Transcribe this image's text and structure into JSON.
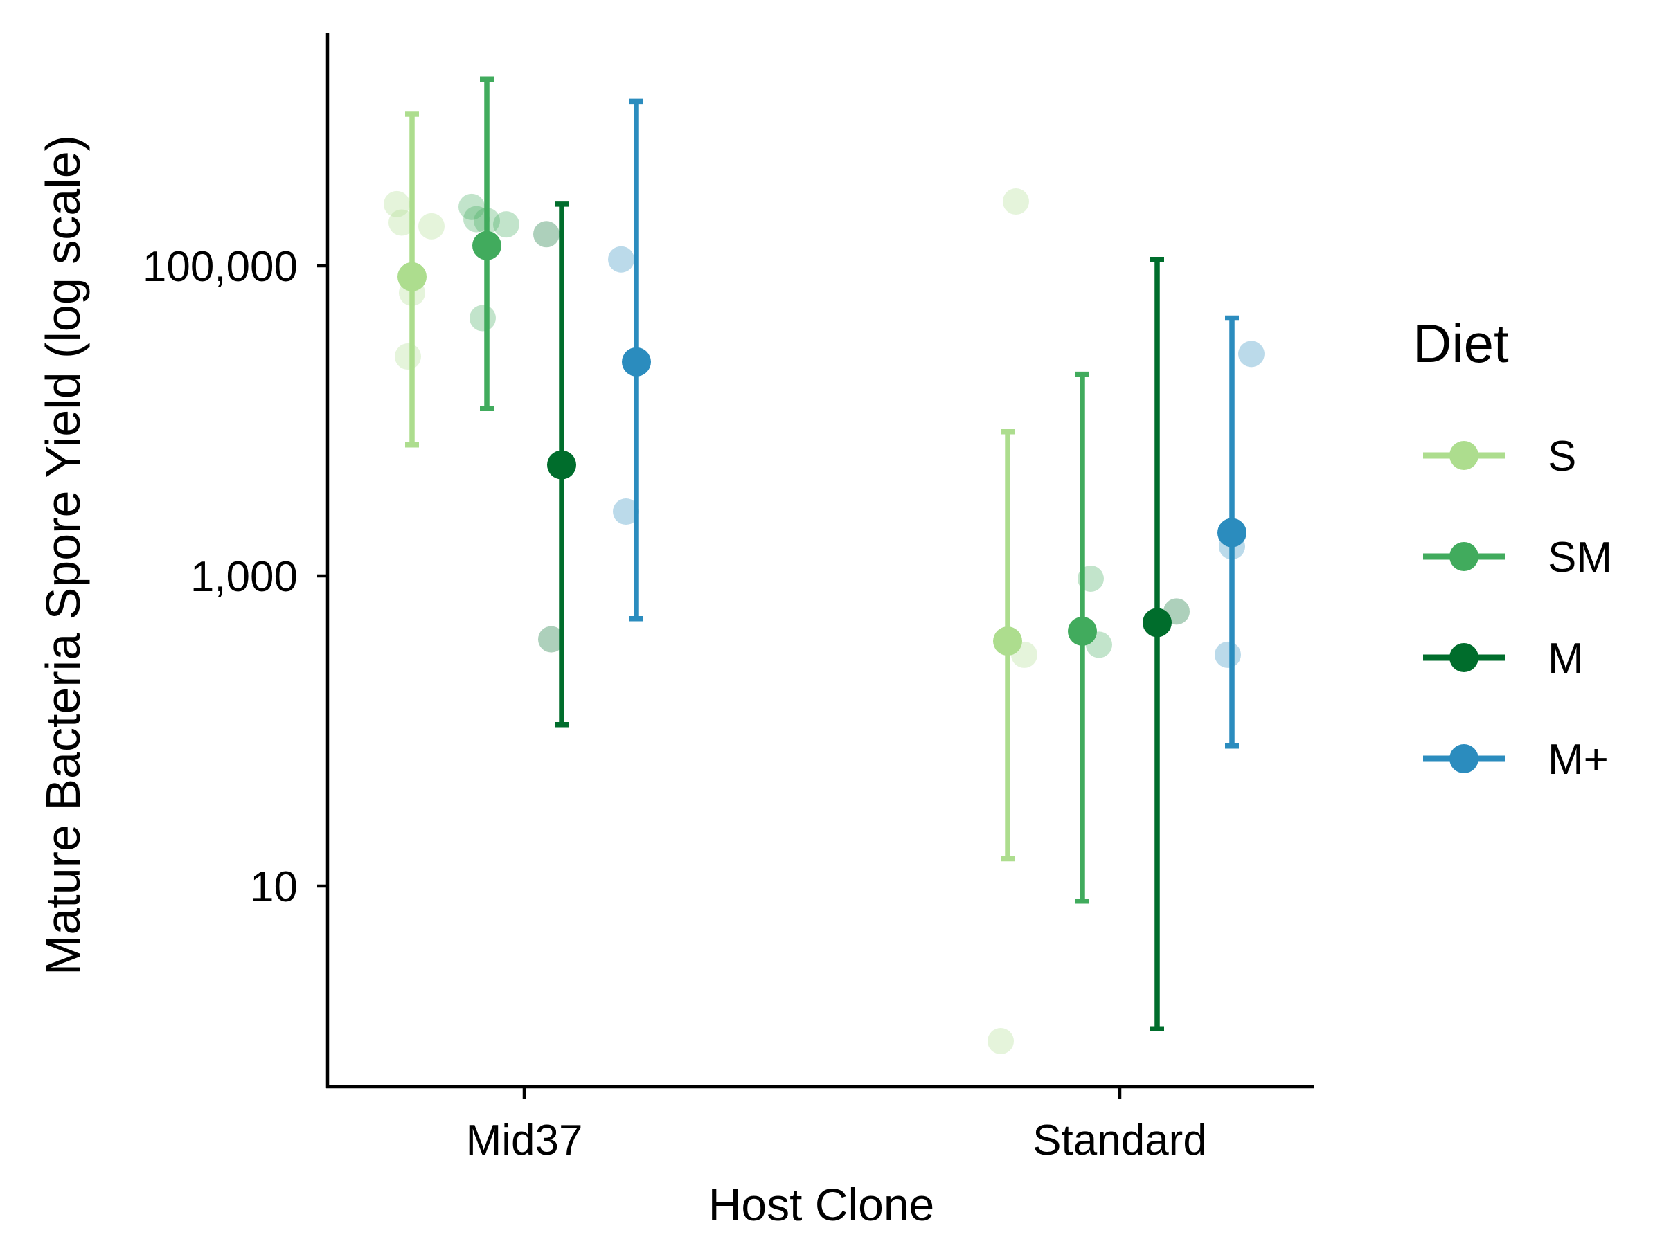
{
  "chart_data": {
    "type": "scatter",
    "subtype": "point-range with jittered raw points",
    "xlabel": "Host Clone",
    "ylabel": "Mature Bacteria Spore Yield (log scale)",
    "y_scale": "log10",
    "ylim": [
      1,
      3500000
    ],
    "y_ticks": [
      10,
      1000,
      100000
    ],
    "y_tick_labels": [
      "10",
      "1,000",
      "100,000"
    ],
    "categories": [
      "Mid37",
      "Standard"
    ],
    "legend": {
      "title": "Diet",
      "placement": "right"
    },
    "grid": false,
    "series": [
      {
        "name": "S",
        "color": "#addd8e",
        "summary": [
          {
            "x": "Mid37",
            "mean": 85000,
            "low": 7000,
            "high": 950000
          },
          {
            "x": "Standard",
            "mean": 380,
            "low": 15,
            "high": 8500
          }
        ],
        "points": [
          {
            "x": "Mid37",
            "y": 250000
          },
          {
            "x": "Mid37",
            "y": 190000
          },
          {
            "x": "Mid37",
            "y": 180000
          },
          {
            "x": "Mid37",
            "y": 67000
          },
          {
            "x": "Mid37",
            "y": 26000
          },
          {
            "x": "Standard",
            "y": 260000
          },
          {
            "x": "Standard",
            "y": 310
          },
          {
            "x": "Standard",
            "y": 1
          }
        ]
      },
      {
        "name": "SM",
        "color": "#41ab5d",
        "summary": [
          {
            "x": "Mid37",
            "mean": 135000,
            "low": 12000,
            "high": 1600000
          },
          {
            "x": "Standard",
            "mean": 440,
            "low": 8,
            "high": 20000
          }
        ],
        "points": [
          {
            "x": "Mid37",
            "y": 240000
          },
          {
            "x": "Mid37",
            "y": 200000
          },
          {
            "x": "Mid37",
            "y": 185000
          },
          {
            "x": "Mid37",
            "y": 195000
          },
          {
            "x": "Mid37",
            "y": 46000
          },
          {
            "x": "Standard",
            "y": 960
          },
          {
            "x": "Standard",
            "y": 360
          }
        ]
      },
      {
        "name": "M",
        "color": "#006d2c",
        "summary": [
          {
            "x": "Mid37",
            "mean": 5200,
            "low": 110,
            "high": 250000
          },
          {
            "x": "Standard",
            "mean": 500,
            "low": 1.2,
            "high": 110000
          }
        ],
        "points": [
          {
            "x": "Mid37",
            "y": 160000
          },
          {
            "x": "Mid37",
            "y": 390
          },
          {
            "x": "Standard",
            "y": 590
          }
        ]
      },
      {
        "name": "M+",
        "color": "#2b8cbe",
        "summary": [
          {
            "x": "Mid37",
            "mean": 24000,
            "low": 530,
            "high": 1150000
          },
          {
            "x": "Standard",
            "mean": 1900,
            "low": 80,
            "high": 46000
          }
        ],
        "points": [
          {
            "x": "Mid37",
            "y": 110000
          },
          {
            "x": "Mid37",
            "y": 2600
          },
          {
            "x": "Standard",
            "y": 27000
          },
          {
            "x": "Standard",
            "y": 1550
          },
          {
            "x": "Standard",
            "y": 310
          }
        ]
      }
    ]
  }
}
